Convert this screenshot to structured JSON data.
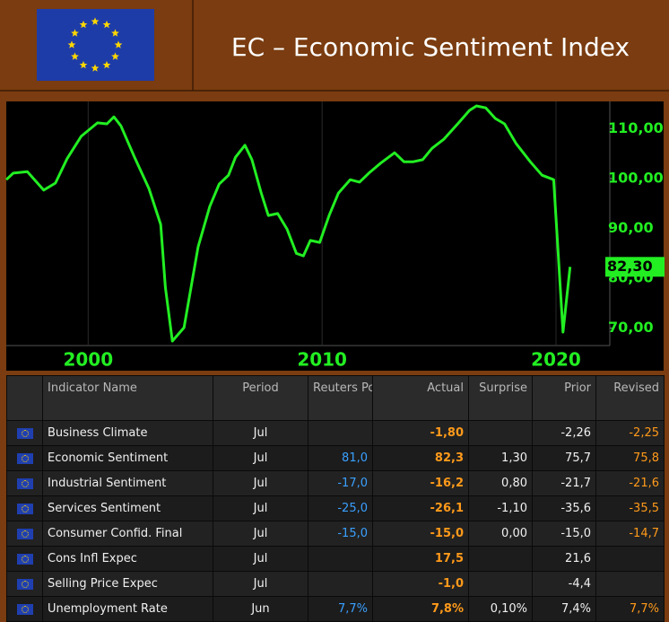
{
  "header": {
    "title": "EC – Economic Sentiment Index"
  },
  "chart_data": {
    "type": "line",
    "color": "#22ee22",
    "grid": true,
    "x": [
      1996.5,
      1996.8,
      1997.4,
      1998.1,
      1998.6,
      1999.1,
      1999.7,
      2000.4,
      2000.8,
      2001.1,
      2001.4,
      2002.0,
      2002.6,
      2003.1,
      2003.3,
      2003.6,
      2004.1,
      2004.7,
      2005.2,
      2005.6,
      2006.0,
      2006.3,
      2006.7,
      2007.0,
      2007.4,
      2007.7,
      2008.1,
      2008.5,
      2008.9,
      2009.2,
      2009.5,
      2009.9,
      2010.3,
      2010.7,
      2011.2,
      2011.6,
      2012.0,
      2012.5,
      2013.1,
      2013.5,
      2013.9,
      2014.3,
      2014.7,
      2015.2,
      2015.8,
      2016.3,
      2016.6,
      2017.0,
      2017.4,
      2017.8,
      2018.3,
      2018.9,
      2019.4,
      2019.9,
      2020.3,
      2020.6
    ],
    "values": [
      99.8,
      101.1,
      101.4,
      97.7,
      99.1,
      104.0,
      108.5,
      111.2,
      111.0,
      112.4,
      110.6,
      104.1,
      98.0,
      90.8,
      78.2,
      67.4,
      70.1,
      86.3,
      94.4,
      98.9,
      100.7,
      104.3,
      106.7,
      103.8,
      97.1,
      92.6,
      93.0,
      89.9,
      85.0,
      84.5,
      87.6,
      87.2,
      92.6,
      97.1,
      99.8,
      99.3,
      101.1,
      103.1,
      105.2,
      103.4,
      103.4,
      103.8,
      106.1,
      107.9,
      111.0,
      113.7,
      114.6,
      114.2,
      112.1,
      111.0,
      107.0,
      103.4,
      100.7,
      99.8,
      69.2,
      82.3
    ],
    "value_labels": [
      null,
      null,
      null,
      null,
      null,
      null,
      null,
      null,
      null,
      null,
      null,
      null,
      null,
      null,
      null,
      null,
      null,
      null,
      null,
      null,
      null,
      null,
      null,
      null,
      null,
      null,
      null,
      null,
      null,
      null,
      null,
      null,
      null,
      null,
      null,
      null,
      null,
      null,
      null,
      null,
      null,
      null,
      null,
      null,
      null,
      null,
      null,
      null,
      null,
      null,
      null,
      null,
      null,
      null,
      null,
      "82,30"
    ],
    "xlim": [
      1996.5,
      2022.3
    ],
    "xticks": [
      2000,
      2010,
      2020
    ],
    "ylim": [
      66.5,
      115.5
    ],
    "yticks": [
      {
        "value": 70,
        "label": "70,00"
      },
      {
        "value": 80,
        "label": "80,00"
      },
      {
        "value": 90,
        "label": "90,00"
      },
      {
        "value": 100,
        "label": "100,00"
      },
      {
        "value": 110,
        "label": "110,00"
      }
    ]
  },
  "table": {
    "header": [
      "Indicator Name",
      "Period",
      "Reuters Poll",
      "Actual",
      "Surprise",
      "Prior",
      "Revised"
    ],
    "rows": [
      [
        "Business Climate",
        "Jul",
        null,
        "-1,80",
        null,
        "-2,26",
        "-2,25"
      ],
      [
        "Economic Sentiment",
        "Jul",
        "81,0",
        "82,3",
        "1,30",
        "75,7",
        "75,8"
      ],
      [
        "Industrial Sentiment",
        "Jul",
        "-17,0",
        "-16,2",
        "0,80",
        "-21,7",
        "-21,6"
      ],
      [
        "Services Sentiment",
        "Jul",
        "-25,0",
        "-26,1",
        "-1,10",
        "-35,6",
        "-35,5"
      ],
      [
        "Consumer Confid. Final",
        "Jul",
        "-15,0",
        "-15,0",
        "0,00",
        "-15,0",
        "-14,7"
      ],
      [
        "Cons Infl Expec",
        "Jul",
        null,
        "17,5",
        null,
        "21,6",
        null
      ],
      [
        "Selling Price Expec",
        "Jul",
        null,
        "-1,0",
        null,
        "-4,4",
        null
      ],
      [
        "Unemployment Rate",
        "Jun",
        "7,7%",
        "7,8%",
        "0,10%",
        "7,4%",
        "7,7%"
      ]
    ]
  }
}
